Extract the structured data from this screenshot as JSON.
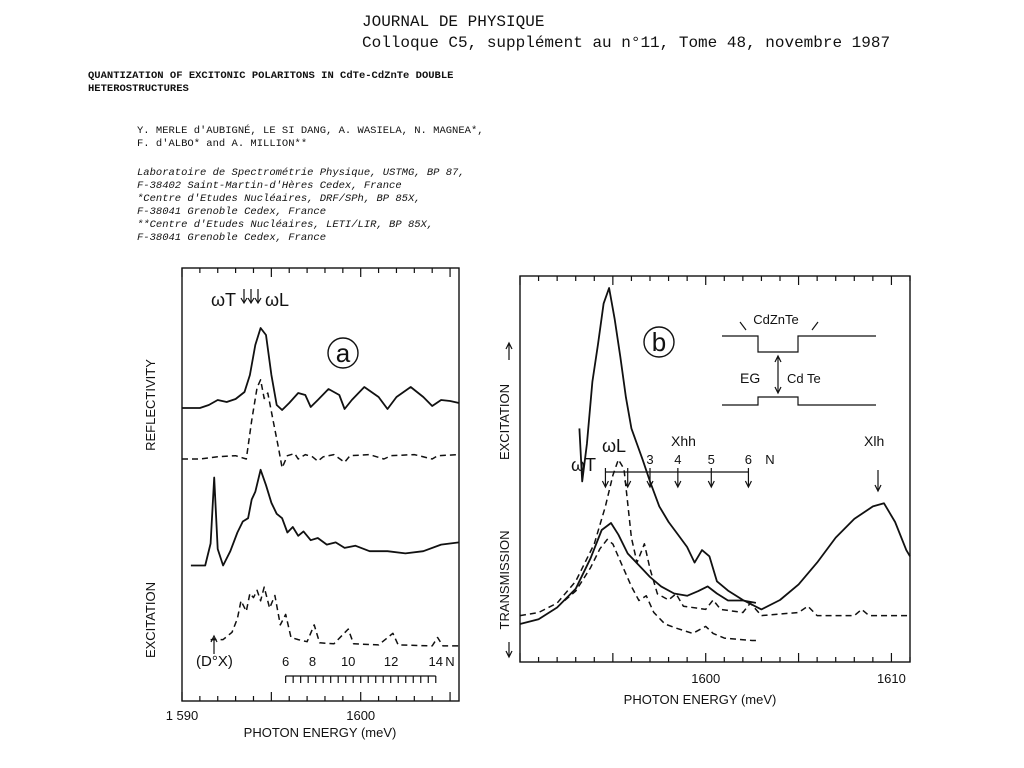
{
  "header": {
    "journal": "JOURNAL DE PHYSIQUE",
    "colloque": "Colloque C5, supplément au n°11, Tome 48, novembre 1987"
  },
  "paper": {
    "title_lines": [
      "QUANTIZATION OF EXCITONIC POLARITONS IN CdTe-CdZnTe DOUBLE",
      "HETEROSTRUCTURES"
    ],
    "author_lines": [
      "Y. MERLE d'AUBIGNÉ, LE SI DANG, A. WASIELA, N. MAGNEA*,",
      "F. d'ALBO* and A. MILLION**"
    ],
    "affiliation_lines": [
      "Laboratoire de Spectrométrie Physique, USTMG, BP 87,",
      "F-38402 Saint-Martin-d'Hères Cedex, France",
      "*Centre d'Etudes Nucléaires, DRF/SPh, BP 85X,",
      "F-38041 Grenoble Cedex, France",
      "**Centre d'Etudes Nucléaires, LETI/LIR, BP 85X,",
      "F-38041 Grenoble Cedex, France"
    ]
  },
  "chart_data": [
    {
      "type": "line",
      "panel_label": "a",
      "xlabel": "PHOTON ENERGY (meV)",
      "ylabel_top": "REFLECTIVITY",
      "ylabel_bottom": "EXCITATION",
      "xlim": [
        1590,
        1605.5
      ],
      "x_ticks": [
        1590,
        1600
      ],
      "x_tick_labels": [
        "1 590",
        "1600"
      ],
      "annotations": {
        "omega_t": "ωT",
        "omega_l": "ωL",
        "d0x": "(D°X)",
        "n_label": "N",
        "n_values": [
          "6",
          "8",
          "10",
          "12",
          "14"
        ],
        "n_positions_meV": [
          1595.8,
          1597.3,
          1599.3,
          1601.7,
          1604.2
        ]
      },
      "series": [
        {
          "style": "solid",
          "group": "reflectivity",
          "points": [
            [
              1590,
              0.17
            ],
            [
              1590.5,
              0.17
            ],
            [
              1591,
              0.17
            ],
            [
              1591.5,
              0.2
            ],
            [
              1592,
              0.25
            ],
            [
              1592.5,
              0.23
            ],
            [
              1593,
              0.26
            ],
            [
              1593.5,
              0.33
            ],
            [
              1593.8,
              0.5
            ],
            [
              1594.1,
              0.8
            ],
            [
              1594.4,
              0.97
            ],
            [
              1594.7,
              0.9
            ],
            [
              1595,
              0.5
            ],
            [
              1595.3,
              0.2
            ],
            [
              1595.6,
              0.15
            ],
            [
              1596,
              0.22
            ],
            [
              1596.5,
              0.32
            ],
            [
              1596.9,
              0.3
            ],
            [
              1597.2,
              0.18
            ],
            [
              1597.6,
              0.25
            ],
            [
              1598.2,
              0.36
            ],
            [
              1598.8,
              0.3
            ],
            [
              1599.1,
              0.16
            ],
            [
              1599.5,
              0.25
            ],
            [
              1600.2,
              0.38
            ],
            [
              1601,
              0.28
            ],
            [
              1601.5,
              0.16
            ],
            [
              1602,
              0.28
            ],
            [
              1602.8,
              0.38
            ],
            [
              1603.5,
              0.28
            ],
            [
              1604,
              0.19
            ],
            [
              1604.5,
              0.25
            ],
            [
              1605,
              0.24
            ],
            [
              1605.5,
              0.22
            ]
          ]
        },
        {
          "style": "dashed",
          "group": "reflectivity",
          "points": [
            [
              1590,
              0.0
            ],
            [
              1591,
              0.0
            ],
            [
              1592,
              0.02
            ],
            [
              1593,
              0.03
            ],
            [
              1593.6,
              0.0
            ],
            [
              1593.9,
              0.35
            ],
            [
              1594.2,
              0.65
            ],
            [
              1594.4,
              0.72
            ],
            [
              1594.6,
              0.55
            ],
            [
              1594.8,
              0.6
            ],
            [
              1595.1,
              0.35
            ],
            [
              1595.4,
              0.1
            ],
            [
              1595.6,
              -0.08
            ],
            [
              1595.9,
              0.03
            ],
            [
              1596.3,
              0.05
            ],
            [
              1596.5,
              0.0
            ],
            [
              1596.9,
              0.04
            ],
            [
              1597.3,
              0.02
            ],
            [
              1597.6,
              -0.02
            ],
            [
              1597.9,
              0.02
            ],
            [
              1598.5,
              0.04
            ],
            [
              1599.1,
              -0.03
            ],
            [
              1599.4,
              0.03
            ],
            [
              1600.5,
              0.04
            ],
            [
              1601.3,
              0.0
            ],
            [
              1601.7,
              0.03
            ],
            [
              1603,
              0.04
            ],
            [
              1604,
              0.0
            ],
            [
              1604.3,
              0.03
            ],
            [
              1605.5,
              0.04
            ]
          ]
        },
        {
          "style": "solid",
          "group": "excitation",
          "points": [
            [
              1590.5,
              0.15
            ],
            [
              1591.3,
              0.15
            ],
            [
              1591.6,
              0.35
            ],
            [
              1591.8,
              0.95
            ],
            [
              1592.0,
              0.3
            ],
            [
              1592.3,
              0.15
            ],
            [
              1592.7,
              0.28
            ],
            [
              1593.1,
              0.45
            ],
            [
              1593.4,
              0.55
            ],
            [
              1593.7,
              0.58
            ],
            [
              1593.9,
              0.75
            ],
            [
              1594.1,
              0.82
            ],
            [
              1594.4,
              1.02
            ],
            [
              1594.7,
              0.88
            ],
            [
              1595,
              0.72
            ],
            [
              1595.3,
              0.62
            ],
            [
              1595.6,
              0.58
            ],
            [
              1595.9,
              0.45
            ],
            [
              1596.2,
              0.5
            ],
            [
              1596.5,
              0.42
            ],
            [
              1596.8,
              0.46
            ],
            [
              1597.2,
              0.38
            ],
            [
              1597.6,
              0.4
            ],
            [
              1598.1,
              0.34
            ],
            [
              1598.6,
              0.36
            ],
            [
              1599.1,
              0.31
            ],
            [
              1599.7,
              0.33
            ],
            [
              1600.5,
              0.28
            ],
            [
              1601.5,
              0.28
            ],
            [
              1602.5,
              0.26
            ],
            [
              1603.5,
              0.28
            ],
            [
              1604.5,
              0.34
            ],
            [
              1605.5,
              0.36
            ]
          ]
        },
        {
          "style": "dashed",
          "group": "excitation",
          "points": [
            [
              1591.6,
              0.08
            ],
            [
              1592.3,
              0.08
            ],
            [
              1592.8,
              0.15
            ],
            [
              1593.1,
              0.28
            ],
            [
              1593.3,
              0.45
            ],
            [
              1593.6,
              0.35
            ],
            [
              1593.8,
              0.52
            ],
            [
              1594.0,
              0.48
            ],
            [
              1594.2,
              0.55
            ],
            [
              1594.4,
              0.45
            ],
            [
              1594.6,
              0.58
            ],
            [
              1594.9,
              0.38
            ],
            [
              1595.2,
              0.5
            ],
            [
              1595.5,
              0.22
            ],
            [
              1595.8,
              0.32
            ],
            [
              1596.1,
              0.1
            ],
            [
              1596.5,
              0.08
            ],
            [
              1597,
              0.06
            ],
            [
              1597.4,
              0.22
            ],
            [
              1597.7,
              0.05
            ],
            [
              1598.5,
              0.04
            ],
            [
              1599.3,
              0.18
            ],
            [
              1599.6,
              0.04
            ],
            [
              1601,
              0.03
            ],
            [
              1601.8,
              0.14
            ],
            [
              1602.1,
              0.03
            ],
            [
              1604,
              0.02
            ],
            [
              1604.3,
              0.1
            ],
            [
              1604.6,
              0.02
            ],
            [
              1605.5,
              0.02
            ]
          ]
        }
      ]
    },
    {
      "type": "line",
      "panel_label": "b",
      "xlabel": "PHOTON ENERGY (meV)",
      "ylabel_top": "EXCITATION",
      "ylabel_bottom": "TRANSMISSION",
      "xlim": [
        1590,
        1611
      ],
      "x_ticks": [
        1600,
        1610
      ],
      "x_tick_labels": [
        "1600",
        "1610"
      ],
      "annotations": {
        "omega_t": "ωT",
        "omega_l": "ωL",
        "xhh": "Xhh",
        "xlh": "Xlh",
        "n_label": "N",
        "n_values": [
          "3",
          "4",
          "5",
          "6"
        ],
        "n_positions_meV": [
          1597.0,
          1598.5,
          1600.3,
          1602.3
        ],
        "inset": {
          "barrier": "CdZnTe",
          "well": "Cd Te",
          "gap_label": "EG"
        }
      },
      "series": [
        {
          "style": "solid",
          "group": "excitation",
          "points": [
            [
              1593.2,
              0.55
            ],
            [
              1593.35,
              0.38
            ],
            [
              1593.6,
              0.5
            ],
            [
              1593.9,
              0.7
            ],
            [
              1594.2,
              0.82
            ],
            [
              1594.5,
              0.95
            ],
            [
              1594.8,
              1.0
            ],
            [
              1595.1,
              0.9
            ],
            [
              1595.4,
              0.78
            ],
            [
              1595.7,
              0.65
            ],
            [
              1596.0,
              0.55
            ],
            [
              1596.3,
              0.5
            ],
            [
              1596.6,
              0.45
            ],
            [
              1597.0,
              0.38
            ],
            [
              1597.5,
              0.3
            ],
            [
              1598.0,
              0.25
            ],
            [
              1598.5,
              0.21
            ],
            [
              1599.0,
              0.17
            ],
            [
              1599.4,
              0.12
            ],
            [
              1599.8,
              0.16
            ],
            [
              1600.2,
              0.14
            ],
            [
              1600.6,
              0.06
            ],
            [
              1601.2,
              0.03
            ],
            [
              1602,
              0.0
            ],
            [
              1603,
              -0.03
            ],
            [
              1604,
              0.0
            ],
            [
              1605,
              0.05
            ],
            [
              1606,
              0.12
            ],
            [
              1607,
              0.2
            ],
            [
              1608,
              0.26
            ],
            [
              1609,
              0.3
            ],
            [
              1609.6,
              0.31
            ],
            [
              1610.2,
              0.25
            ],
            [
              1610.8,
              0.16
            ],
            [
              1611,
              0.14
            ]
          ]
        },
        {
          "style": "dashed",
          "group": "excitation",
          "points": [
            [
              1590,
              -0.05
            ],
            [
              1591,
              -0.04
            ],
            [
              1592,
              -0.01
            ],
            [
              1593,
              0.06
            ],
            [
              1594.0,
              0.18
            ],
            [
              1594.6,
              0.3
            ],
            [
              1595.0,
              0.4
            ],
            [
              1595.3,
              0.45
            ],
            [
              1595.6,
              0.42
            ],
            [
              1596.0,
              0.2
            ],
            [
              1596.3,
              0.12
            ],
            [
              1596.7,
              0.18
            ],
            [
              1597.0,
              0.1
            ],
            [
              1597.4,
              0.02
            ],
            [
              1598,
              0.0
            ],
            [
              1598.4,
              0.02
            ],
            [
              1598.8,
              -0.02
            ],
            [
              1600,
              -0.03
            ],
            [
              1600.4,
              0.0
            ],
            [
              1600.8,
              -0.03
            ],
            [
              1602,
              -0.04
            ],
            [
              1602.4,
              -0.01
            ],
            [
              1603,
              -0.05
            ],
            [
              1605,
              -0.04
            ],
            [
              1605.5,
              -0.02
            ],
            [
              1606,
              -0.05
            ],
            [
              1608,
              -0.05
            ],
            [
              1608.4,
              -0.03
            ],
            [
              1608.8,
              -0.05
            ],
            [
              1611,
              -0.05
            ]
          ]
        },
        {
          "style": "solid",
          "group": "transmission",
          "points": [
            [
              1590,
              -0.4
            ],
            [
              1591,
              -0.38
            ],
            [
              1592,
              -0.33
            ],
            [
              1593,
              -0.25
            ],
            [
              1593.8,
              -0.12
            ],
            [
              1594.4,
              0.0
            ],
            [
              1594.9,
              0.03
            ],
            [
              1595.3,
              -0.02
            ],
            [
              1595.8,
              -0.1
            ],
            [
              1596.4,
              -0.15
            ],
            [
              1597,
              -0.2
            ],
            [
              1597.6,
              -0.24
            ],
            [
              1598.3,
              -0.27
            ],
            [
              1599,
              -0.28
            ],
            [
              1599.6,
              -0.26
            ],
            [
              1600.1,
              -0.24
            ],
            [
              1600.6,
              -0.27
            ],
            [
              1601.2,
              -0.3
            ],
            [
              1602,
              -0.3
            ],
            [
              1602.7,
              -0.31
            ]
          ]
        },
        {
          "style": "dashed",
          "group": "transmission",
          "points": [
            [
              1592.4,
              -0.3
            ],
            [
              1593,
              -0.26
            ],
            [
              1593.8,
              -0.16
            ],
            [
              1594.3,
              -0.08
            ],
            [
              1594.7,
              -0.04
            ],
            [
              1595.0,
              -0.06
            ],
            [
              1595.5,
              -0.15
            ],
            [
              1596.0,
              -0.24
            ],
            [
              1596.4,
              -0.3
            ],
            [
              1596.8,
              -0.28
            ],
            [
              1597.2,
              -0.35
            ],
            [
              1597.8,
              -0.4
            ],
            [
              1598.5,
              -0.42
            ],
            [
              1599.3,
              -0.44
            ],
            [
              1600.0,
              -0.41
            ],
            [
              1600.4,
              -0.44
            ],
            [
              1601,
              -0.46
            ],
            [
              1602.5,
              -0.47
            ],
            [
              1602.8,
              -0.47
            ]
          ]
        }
      ]
    }
  ]
}
